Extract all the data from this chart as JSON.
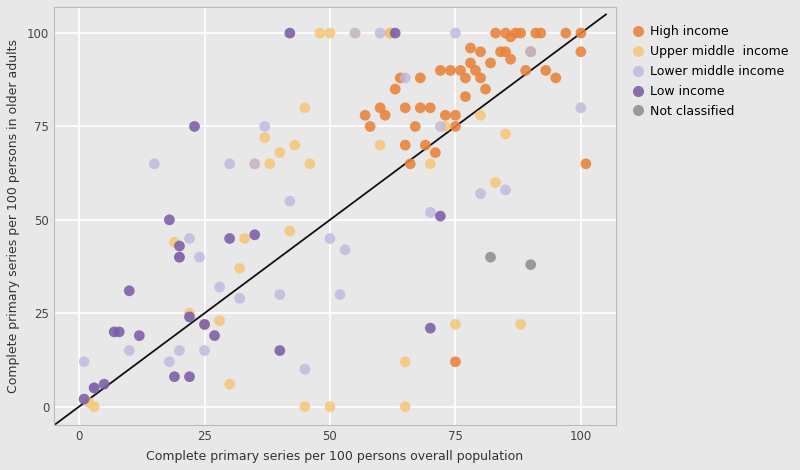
{
  "title": "",
  "xlabel": "Complete primary series per 100 persons overall population",
  "ylabel": "Complete primary series per 100 persons in older adults",
  "xlim": [
    -5,
    107
  ],
  "ylim": [
    -5,
    107
  ],
  "xticks": [
    0,
    25,
    50,
    75,
    100
  ],
  "yticks": [
    0,
    25,
    50,
    75,
    100
  ],
  "bg_color": "#e8e8e8",
  "plot_bg_color": "#e8e8e8",
  "grid_color": "#ffffff",
  "diagonal_color": "#111111",
  "groups": [
    {
      "label": "High income",
      "color": "#E8823A",
      "alpha": 0.88,
      "x": [
        57,
        58,
        60,
        61,
        62,
        63,
        64,
        65,
        65,
        66,
        67,
        68,
        68,
        69,
        70,
        71,
        72,
        73,
        74,
        75,
        75,
        76,
        77,
        77,
        78,
        78,
        79,
        80,
        80,
        81,
        82,
        83,
        84,
        85,
        85,
        86,
        86,
        87,
        88,
        89,
        90,
        91,
        92,
        93,
        95,
        97,
        100,
        100,
        101,
        75
      ],
      "y": [
        78,
        75,
        80,
        78,
        100,
        85,
        88,
        70,
        80,
        65,
        75,
        80,
        88,
        70,
        80,
        68,
        90,
        78,
        90,
        75,
        78,
        90,
        83,
        88,
        92,
        96,
        90,
        88,
        95,
        85,
        92,
        100,
        95,
        95,
        100,
        93,
        99,
        100,
        100,
        90,
        95,
        100,
        100,
        90,
        88,
        100,
        100,
        95,
        65,
        12
      ]
    },
    {
      "label": "Upper middle  income",
      "color": "#F5C87A",
      "alpha": 0.88,
      "x": [
        2,
        3,
        19,
        22,
        25,
        28,
        30,
        32,
        33,
        35,
        37,
        38,
        40,
        42,
        43,
        45,
        45,
        46,
        48,
        50,
        50,
        55,
        60,
        62,
        65,
        65,
        70,
        73,
        75,
        80,
        83,
        85,
        88
      ],
      "y": [
        1,
        0,
        44,
        25,
        22,
        23,
        6,
        37,
        45,
        65,
        72,
        65,
        68,
        47,
        70,
        80,
        0,
        65,
        100,
        100,
        0,
        100,
        70,
        100,
        0,
        12,
        65,
        75,
        22,
        78,
        60,
        73,
        22
      ]
    },
    {
      "label": "Lower middle income",
      "color": "#C0B8DC",
      "alpha": 0.82,
      "x": [
        1,
        3,
        10,
        15,
        18,
        20,
        20,
        22,
        24,
        25,
        28,
        30,
        32,
        35,
        37,
        40,
        42,
        45,
        50,
        52,
        53,
        55,
        60,
        65,
        70,
        72,
        75,
        80,
        85,
        90,
        100
      ],
      "y": [
        12,
        5,
        15,
        65,
        12,
        15,
        40,
        45,
        40,
        15,
        32,
        65,
        29,
        65,
        75,
        30,
        55,
        10,
        45,
        30,
        42,
        100,
        100,
        88,
        52,
        75,
        100,
        57,
        58,
        95,
        80
      ]
    },
    {
      "label": "Low income",
      "color": "#7B5CA8",
      "alpha": 0.88,
      "x": [
        1,
        3,
        5,
        7,
        8,
        10,
        12,
        18,
        19,
        20,
        20,
        22,
        22,
        23,
        25,
        27,
        30,
        35,
        40,
        42,
        63,
        70,
        72
      ],
      "y": [
        2,
        5,
        6,
        20,
        20,
        31,
        19,
        50,
        8,
        40,
        43,
        24,
        8,
        75,
        22,
        19,
        45,
        46,
        15,
        100,
        100,
        21,
        51
      ]
    },
    {
      "label": "Not classified",
      "color": "#909090",
      "alpha": 0.88,
      "x": [
        82,
        90
      ],
      "y": [
        40,
        38
      ]
    }
  ]
}
